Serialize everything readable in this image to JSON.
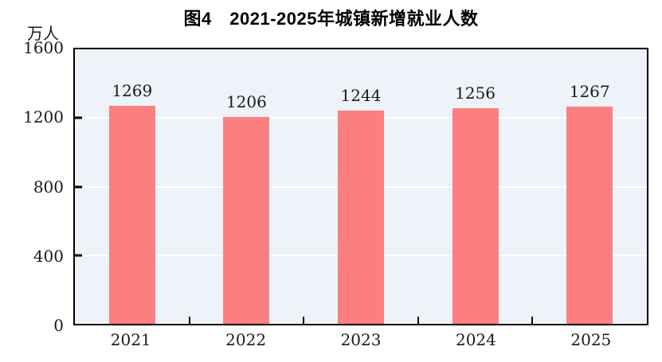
{
  "title": "图4　2021-2025年城镇新增就业人数",
  "chart_data": {
    "type": "bar",
    "title": "图4　2021-2025年城镇新增就业人数",
    "unit_label": "万人",
    "categories": [
      "2021",
      "2022",
      "2023",
      "2024",
      "2025"
    ],
    "values": [
      1269,
      1206,
      1244,
      1256,
      1267
    ],
    "xlabel": "",
    "ylabel": "万人",
    "ylim": [
      0,
      1600
    ],
    "yticks": [
      0,
      400,
      800,
      1200,
      1600
    ],
    "grid": "horizontal white lines at 400/800/1200 behind bars",
    "legend_position": "none",
    "colors": {
      "bar": "#FC7F7F",
      "plot_background": "#EDF3F8",
      "axis_frame": "#000000",
      "gridline": "#ffffff",
      "text": "#1a1a1a",
      "page_background": "#ffffff"
    }
  }
}
